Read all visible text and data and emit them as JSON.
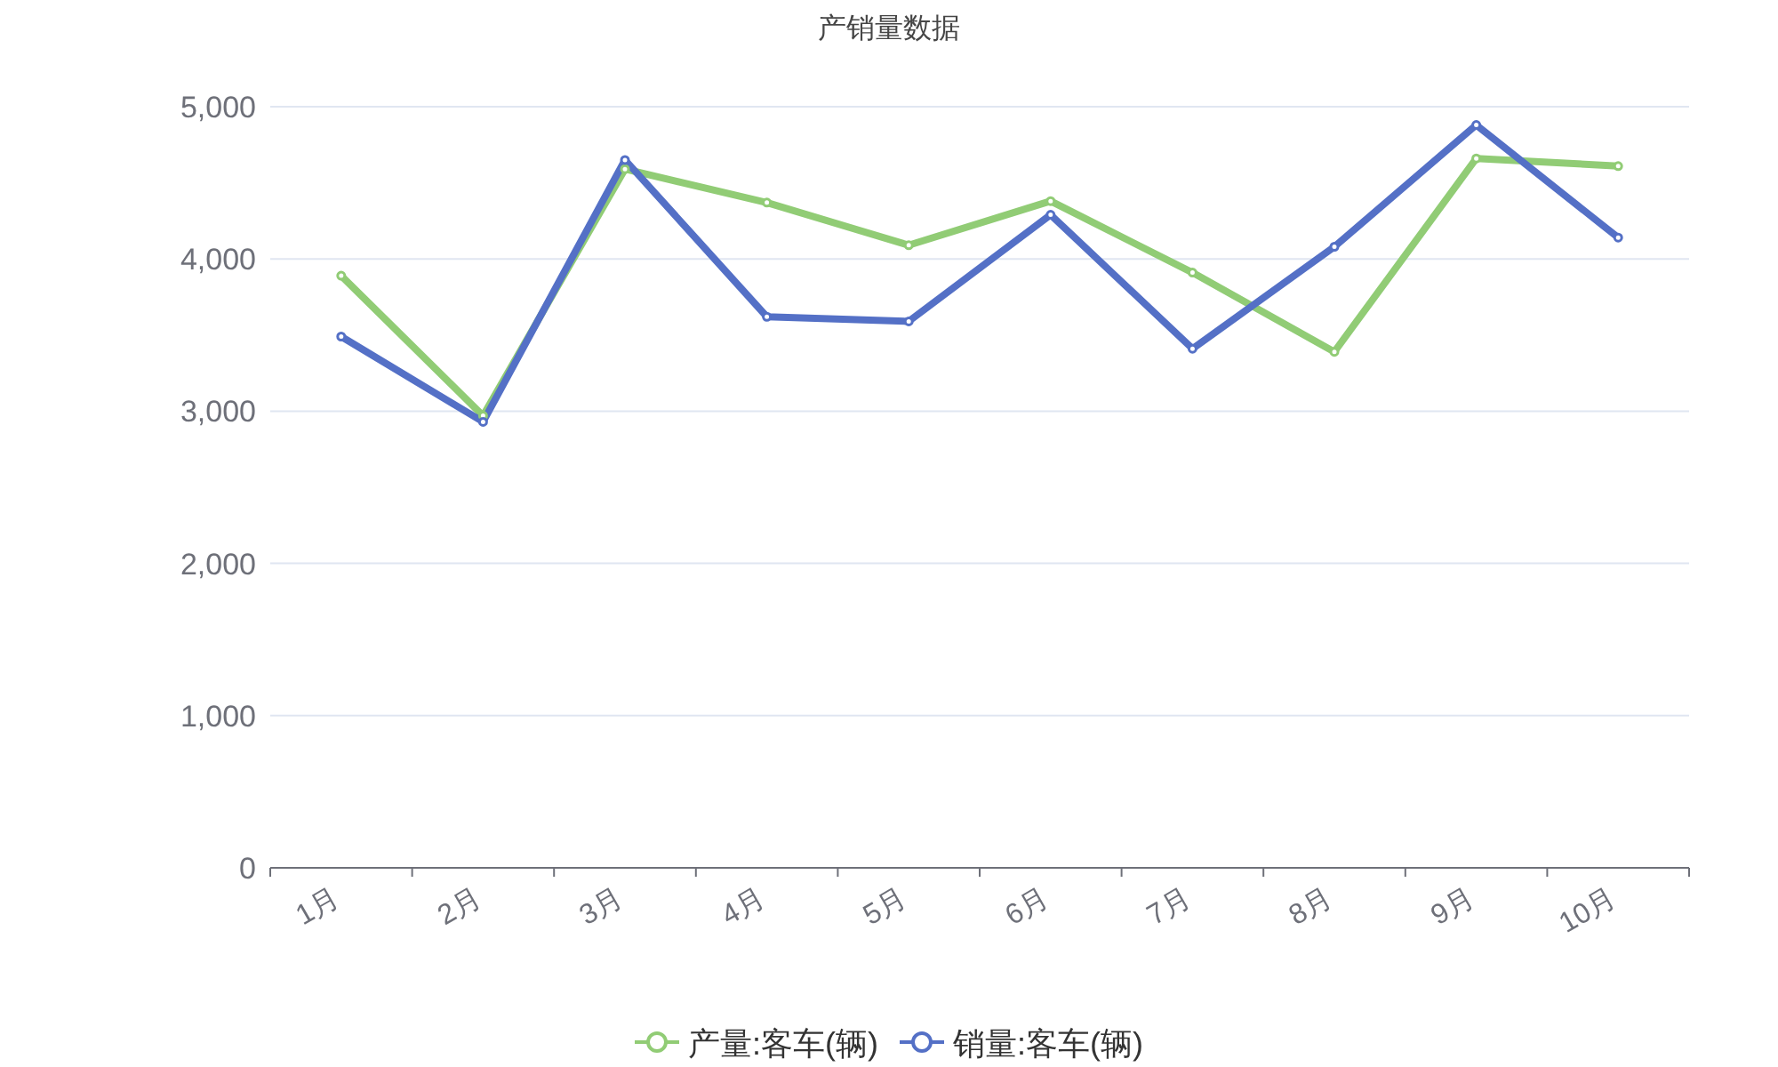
{
  "chart_data": {
    "type": "line",
    "title": "产销量数据",
    "categories": [
      "1月",
      "2月",
      "3月",
      "4月",
      "5月",
      "6月",
      "7月",
      "8月",
      "9月",
      "10月"
    ],
    "series": [
      {
        "name": "产量:客车(辆)",
        "color": "#91cc75",
        "values": [
          3890,
          2970,
          4590,
          4370,
          4090,
          4380,
          3910,
          3390,
          4660,
          4610
        ]
      },
      {
        "name": "销量:客车(辆)",
        "color": "#5470c6",
        "values": [
          3490,
          2930,
          4650,
          3620,
          3590,
          4290,
          3410,
          4080,
          4880,
          4140
        ]
      }
    ],
    "ylim": [
      0,
      5000
    ],
    "yticks": [
      {
        "value": 0,
        "label": "0"
      },
      {
        "value": 1000,
        "label": "1,000"
      },
      {
        "value": 2000,
        "label": "2,000"
      },
      {
        "value": 3000,
        "label": "3,000"
      },
      {
        "value": 4000,
        "label": "4,000"
      },
      {
        "value": 5000,
        "label": "5,000"
      }
    ],
    "grid": "y",
    "legend": "bottom",
    "marker": "circle",
    "line_style": "solid"
  }
}
